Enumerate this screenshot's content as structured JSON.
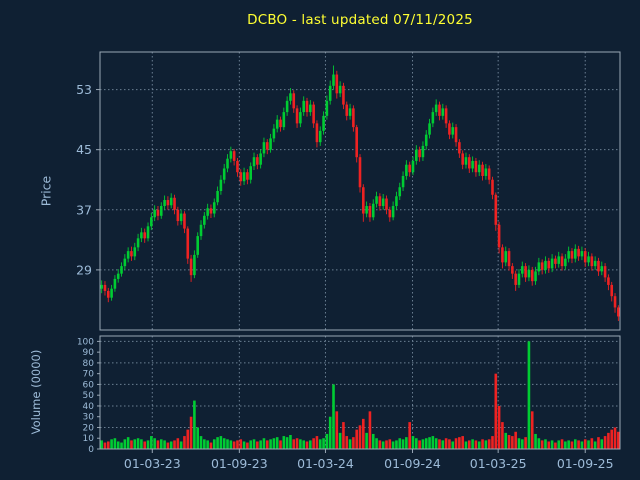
{
  "title": {
    "text": "DCBO - last updated 07/11/2025"
  },
  "colors": {
    "background": "#0f2033",
    "title": "#ffff33",
    "up": "#00cc33",
    "down": "#ee2222",
    "grid": "#6b7f93",
    "frame": "#9aa8b6",
    "tick": "#9dbbd8"
  },
  "price_axis": {
    "label": "Price",
    "ticks": [
      53,
      45,
      37,
      29
    ],
    "range": [
      21,
      58
    ]
  },
  "volume_axis": {
    "label": "Volume (0000)",
    "ticks": [
      100,
      90,
      80,
      70,
      60,
      50,
      40,
      30,
      20,
      10,
      0
    ],
    "grid_ticks": [
      20,
      40,
      60,
      80,
      100
    ],
    "range": [
      0,
      105
    ]
  },
  "x_axis": {
    "ticks": [
      {
        "label": "01-03-23",
        "date": "2023-03-01"
      },
      {
        "label": "01-09-23",
        "date": "2023-09-01"
      },
      {
        "label": "01-03-24",
        "date": "2024-03-01"
      },
      {
        "label": "01-09-24",
        "date": "2024-09-01"
      },
      {
        "label": "01-03-25",
        "date": "2025-03-01"
      },
      {
        "label": "01-09-25",
        "date": "2025-09-01"
      }
    ]
  },
  "chart_data": {
    "type": "candlestick+volume-bar",
    "symbol": "DCBO",
    "title": "DCBO - last updated 07/11/2025",
    "ylabel_price": "Price",
    "ylabel_volume": "Volume (0000)",
    "price_ylim": [
      21,
      58
    ],
    "volume_ylim": [
      0,
      105
    ],
    "grid": "dotted",
    "columns": [
      "date",
      "open",
      "high",
      "low",
      "close",
      "volume_0000"
    ],
    "rows": [
      [
        "2022-11-14",
        26.5,
        27.6,
        25.9,
        27.0,
        8
      ],
      [
        "2022-11-21",
        27.0,
        27.5,
        25.6,
        26.2,
        6
      ],
      [
        "2022-11-28",
        26.2,
        26.6,
        24.7,
        25.3,
        7
      ],
      [
        "2022-12-05",
        25.3,
        27.0,
        24.9,
        26.5,
        9
      ],
      [
        "2022-12-12",
        26.5,
        28.3,
        26.1,
        27.8,
        10
      ],
      [
        "2022-12-19",
        27.8,
        29.1,
        27.3,
        28.5,
        7
      ],
      [
        "2022-12-26",
        28.5,
        30.0,
        28.1,
        29.5,
        6
      ],
      [
        "2023-01-02",
        29.5,
        31.1,
        29.0,
        30.5,
        9
      ],
      [
        "2023-01-09",
        30.5,
        32.0,
        30.0,
        31.5,
        11
      ],
      [
        "2023-01-16",
        31.5,
        32.1,
        30.2,
        30.8,
        8
      ],
      [
        "2023-01-23",
        30.8,
        32.6,
        30.3,
        32.0,
        9
      ],
      [
        "2023-01-30",
        32.0,
        33.8,
        31.5,
        33.2,
        10
      ],
      [
        "2023-02-06",
        33.2,
        34.6,
        32.7,
        34.0,
        9
      ],
      [
        "2023-02-13",
        34.0,
        34.5,
        32.6,
        33.2,
        7
      ],
      [
        "2023-02-20",
        33.2,
        35.3,
        32.8,
        34.8,
        8
      ],
      [
        "2023-02-27",
        34.8,
        36.6,
        34.3,
        36.0,
        12
      ],
      [
        "2023-03-06",
        36.0,
        37.6,
        35.5,
        37.0,
        10
      ],
      [
        "2023-03-13",
        37.0,
        37.5,
        35.6,
        36.2,
        8
      ],
      [
        "2023-03-20",
        36.2,
        38.0,
        35.8,
        37.5,
        9
      ],
      [
        "2023-03-27",
        37.5,
        38.9,
        37.0,
        38.3,
        8
      ],
      [
        "2023-04-03",
        38.3,
        38.8,
        37.0,
        37.6,
        6
      ],
      [
        "2023-04-10",
        37.6,
        39.2,
        37.2,
        38.6,
        7
      ],
      [
        "2023-04-17",
        38.6,
        39.0,
        36.4,
        37.0,
        8
      ],
      [
        "2023-04-24",
        37.0,
        37.4,
        34.9,
        35.5,
        10
      ],
      [
        "2023-05-01",
        35.5,
        37.0,
        35.0,
        36.5,
        7
      ],
      [
        "2023-05-08",
        36.5,
        36.8,
        33.9,
        34.5,
        12
      ],
      [
        "2023-05-15",
        34.5,
        34.8,
        29.8,
        30.5,
        18
      ],
      [
        "2023-05-22",
        30.5,
        31.0,
        27.4,
        28.3,
        30
      ],
      [
        "2023-05-29",
        28.3,
        31.6,
        27.9,
        31.0,
        45
      ],
      [
        "2023-06-05",
        31.0,
        34.0,
        30.6,
        33.5,
        20
      ],
      [
        "2023-06-12",
        33.5,
        35.6,
        33.0,
        35.0,
        12
      ],
      [
        "2023-06-19",
        35.0,
        36.7,
        34.5,
        36.2,
        9
      ],
      [
        "2023-06-26",
        36.2,
        37.8,
        35.7,
        37.2,
        8
      ],
      [
        "2023-07-03",
        37.2,
        37.7,
        35.9,
        36.5,
        6
      ],
      [
        "2023-07-10",
        36.5,
        38.5,
        36.0,
        38.0,
        9
      ],
      [
        "2023-07-17",
        38.0,
        40.1,
        37.6,
        39.5,
        11
      ],
      [
        "2023-07-24",
        39.5,
        41.6,
        39.0,
        41.0,
        12
      ],
      [
        "2023-07-31",
        41.0,
        43.1,
        40.5,
        42.5,
        10
      ],
      [
        "2023-08-07",
        42.5,
        44.4,
        42.0,
        43.8,
        9
      ],
      [
        "2023-08-14",
        43.8,
        45.4,
        43.3,
        44.8,
        8
      ],
      [
        "2023-08-21",
        44.8,
        45.1,
        42.9,
        43.5,
        7
      ],
      [
        "2023-08-28",
        43.5,
        43.9,
        41.4,
        42.0,
        8
      ],
      [
        "2023-09-04",
        42.0,
        42.4,
        40.2,
        40.8,
        9
      ],
      [
        "2023-09-11",
        40.8,
        42.6,
        40.3,
        42.0,
        7
      ],
      [
        "2023-09-18",
        42.0,
        42.4,
        40.4,
        41.0,
        6
      ],
      [
        "2023-09-25",
        41.0,
        43.3,
        40.5,
        42.8,
        8
      ],
      [
        "2023-10-02",
        42.8,
        44.6,
        42.3,
        44.0,
        9
      ],
      [
        "2023-10-09",
        44.0,
        44.4,
        42.4,
        43.0,
        7
      ],
      [
        "2023-10-16",
        43.0,
        45.0,
        42.5,
        44.5,
        8
      ],
      [
        "2023-10-23",
        44.5,
        46.6,
        44.0,
        46.0,
        10
      ],
      [
        "2023-10-30",
        46.0,
        46.4,
        44.4,
        45.0,
        8
      ],
      [
        "2023-11-06",
        45.0,
        47.1,
        44.6,
        46.5,
        9
      ],
      [
        "2023-11-13",
        46.5,
        48.4,
        46.0,
        47.8,
        10
      ],
      [
        "2023-11-20",
        47.8,
        49.6,
        47.3,
        49.0,
        11
      ],
      [
        "2023-11-27",
        49.0,
        49.4,
        47.4,
        48.0,
        8
      ],
      [
        "2023-12-04",
        48.0,
        50.6,
        47.6,
        50.0,
        12
      ],
      [
        "2023-12-11",
        50.0,
        52.1,
        49.5,
        51.5,
        11
      ],
      [
        "2023-12-18",
        51.5,
        53.2,
        51.0,
        52.5,
        13
      ],
      [
        "2023-12-25",
        52.5,
        52.9,
        49.9,
        50.5,
        9
      ],
      [
        "2024-01-01",
        50.5,
        50.9,
        47.9,
        48.5,
        10
      ],
      [
        "2024-01-08",
        48.5,
        50.6,
        48.0,
        50.0,
        9
      ],
      [
        "2024-01-15",
        50.0,
        52.1,
        49.5,
        51.5,
        8
      ],
      [
        "2024-01-22",
        51.5,
        51.9,
        49.4,
        50.0,
        7
      ],
      [
        "2024-01-29",
        50.0,
        51.6,
        49.5,
        51.0,
        8
      ],
      [
        "2024-02-05",
        51.0,
        51.4,
        47.9,
        48.5,
        10
      ],
      [
        "2024-02-12",
        48.5,
        48.9,
        45.3,
        46.0,
        12
      ],
      [
        "2024-02-19",
        46.0,
        48.1,
        45.5,
        47.5,
        9
      ],
      [
        "2024-02-26",
        47.5,
        50.1,
        47.0,
        49.5,
        10
      ],
      [
        "2024-03-04",
        49.5,
        52.2,
        49.0,
        51.5,
        14
      ],
      [
        "2024-03-11",
        51.5,
        54.2,
        51.0,
        53.5,
        30
      ],
      [
        "2024-03-18",
        53.5,
        56.2,
        53.0,
        55.0,
        60
      ],
      [
        "2024-03-25",
        55.0,
        55.5,
        51.8,
        52.5,
        35
      ],
      [
        "2024-04-01",
        52.5,
        54.1,
        52.0,
        53.5,
        15
      ],
      [
        "2024-04-08",
        53.5,
        53.9,
        50.4,
        51.0,
        25
      ],
      [
        "2024-04-15",
        51.0,
        51.4,
        48.9,
        49.5,
        12
      ],
      [
        "2024-04-22",
        49.5,
        51.1,
        49.0,
        50.5,
        9
      ],
      [
        "2024-04-29",
        50.5,
        50.9,
        47.4,
        48.0,
        11
      ],
      [
        "2024-05-06",
        48.0,
        48.3,
        43.3,
        44.0,
        18
      ],
      [
        "2024-05-13",
        44.0,
        44.4,
        39.3,
        40.0,
        22
      ],
      [
        "2024-05-20",
        40.0,
        40.4,
        35.4,
        36.5,
        28
      ],
      [
        "2024-05-27",
        36.5,
        38.1,
        36.0,
        37.5,
        15
      ],
      [
        "2024-06-03",
        37.5,
        37.9,
        35.4,
        36.0,
        35
      ],
      [
        "2024-06-10",
        36.0,
        38.4,
        35.6,
        37.8,
        14
      ],
      [
        "2024-06-17",
        37.8,
        39.4,
        37.3,
        38.8,
        10
      ],
      [
        "2024-06-24",
        38.8,
        39.2,
        36.9,
        37.5,
        8
      ],
      [
        "2024-07-01",
        37.5,
        39.1,
        37.0,
        38.5,
        7
      ],
      [
        "2024-07-08",
        38.5,
        38.9,
        36.4,
        37.0,
        8
      ],
      [
        "2024-07-15",
        37.0,
        37.4,
        35.4,
        36.0,
        9
      ],
      [
        "2024-07-22",
        36.0,
        38.1,
        35.6,
        37.5,
        7
      ],
      [
        "2024-07-29",
        37.5,
        39.4,
        37.0,
        38.8,
        8
      ],
      [
        "2024-08-05",
        38.8,
        40.6,
        38.3,
        40.0,
        10
      ],
      [
        "2024-08-12",
        40.0,
        42.1,
        39.5,
        41.5,
        9
      ],
      [
        "2024-08-19",
        41.5,
        43.6,
        41.0,
        43.0,
        11
      ],
      [
        "2024-08-26",
        43.0,
        43.4,
        41.4,
        42.0,
        25
      ],
      [
        "2024-09-02",
        42.0,
        44.1,
        41.6,
        43.5,
        12
      ],
      [
        "2024-09-09",
        43.5,
        45.6,
        43.0,
        45.0,
        10
      ],
      [
        "2024-09-16",
        45.0,
        45.4,
        43.4,
        44.0,
        8
      ],
      [
        "2024-09-23",
        44.0,
        46.1,
        43.5,
        45.5,
        9
      ],
      [
        "2024-09-30",
        45.5,
        47.6,
        45.0,
        47.0,
        10
      ],
      [
        "2024-10-07",
        47.0,
        49.1,
        46.5,
        48.5,
        11
      ],
      [
        "2024-10-14",
        48.5,
        50.6,
        48.0,
        50.0,
        12
      ],
      [
        "2024-10-21",
        50.0,
        51.7,
        49.5,
        51.0,
        10
      ],
      [
        "2024-10-28",
        51.0,
        51.4,
        48.9,
        49.5,
        9
      ],
      [
        "2024-11-04",
        49.5,
        51.1,
        49.0,
        50.5,
        8
      ],
      [
        "2024-11-11",
        50.5,
        50.9,
        47.9,
        48.5,
        10
      ],
      [
        "2024-11-18",
        48.5,
        48.9,
        46.4,
        47.0,
        9
      ],
      [
        "2024-11-25",
        47.0,
        48.6,
        46.5,
        48.0,
        7
      ],
      [
        "2024-12-02",
        48.0,
        48.4,
        45.4,
        46.0,
        10
      ],
      [
        "2024-12-09",
        46.0,
        46.4,
        43.9,
        44.5,
        11
      ],
      [
        "2024-12-16",
        44.5,
        44.9,
        42.4,
        43.0,
        12
      ],
      [
        "2024-12-23",
        43.0,
        44.6,
        42.5,
        44.0,
        7
      ],
      [
        "2024-12-30",
        44.0,
        44.4,
        41.9,
        42.5,
        8
      ],
      [
        "2025-01-06",
        42.5,
        44.1,
        42.0,
        43.5,
        9
      ],
      [
        "2025-01-13",
        43.5,
        43.9,
        41.4,
        42.0,
        8
      ],
      [
        "2025-01-20",
        42.0,
        43.6,
        41.5,
        43.0,
        7
      ],
      [
        "2025-01-27",
        43.0,
        43.4,
        40.9,
        41.5,
        9
      ],
      [
        "2025-02-03",
        41.5,
        43.1,
        41.0,
        42.5,
        8
      ],
      [
        "2025-02-10",
        42.5,
        42.9,
        40.4,
        41.0,
        9
      ],
      [
        "2025-02-17",
        41.0,
        41.4,
        38.4,
        39.0,
        12
      ],
      [
        "2025-02-24",
        39.0,
        39.3,
        34.2,
        35.0,
        70
      ],
      [
        "2025-03-03",
        35.0,
        35.4,
        31.2,
        32.0,
        40
      ],
      [
        "2025-03-10",
        32.0,
        32.4,
        29.2,
        30.0,
        25
      ],
      [
        "2025-03-17",
        30.0,
        32.1,
        29.5,
        31.5,
        15
      ],
      [
        "2025-03-24",
        31.5,
        31.9,
        28.9,
        29.5,
        13
      ],
      [
        "2025-03-31",
        29.5,
        29.9,
        27.8,
        28.5,
        12
      ],
      [
        "2025-04-07",
        28.5,
        28.9,
        26.2,
        27.0,
        16
      ],
      [
        "2025-04-14",
        27.0,
        29.1,
        26.6,
        28.5,
        10
      ],
      [
        "2025-04-21",
        28.5,
        30.1,
        28.0,
        29.5,
        9
      ],
      [
        "2025-04-28",
        29.5,
        29.9,
        27.4,
        28.0,
        11
      ],
      [
        "2025-05-05",
        28.0,
        29.6,
        27.5,
        29.0,
        100
      ],
      [
        "2025-05-12",
        29.0,
        29.4,
        26.9,
        27.5,
        35
      ],
      [
        "2025-05-19",
        27.5,
        29.4,
        27.0,
        28.8,
        14
      ],
      [
        "2025-05-26",
        28.8,
        30.6,
        28.3,
        30.0,
        10
      ],
      [
        "2025-06-02",
        30.0,
        30.4,
        28.4,
        29.0,
        8
      ],
      [
        "2025-06-09",
        29.0,
        30.8,
        28.5,
        30.2,
        9
      ],
      [
        "2025-06-16",
        30.2,
        30.6,
        28.6,
        29.2,
        7
      ],
      [
        "2025-06-23",
        29.2,
        31.1,
        28.7,
        30.5,
        8
      ],
      [
        "2025-06-30",
        30.5,
        30.9,
        29.2,
        29.8,
        6
      ],
      [
        "2025-07-07",
        29.8,
        31.4,
        29.3,
        30.8,
        8
      ],
      [
        "2025-07-14",
        30.8,
        31.2,
        28.9,
        29.5,
        9
      ],
      [
        "2025-07-21",
        29.5,
        31.1,
        29.0,
        30.5,
        7
      ],
      [
        "2025-07-28",
        30.5,
        32.1,
        30.0,
        31.5,
        8
      ],
      [
        "2025-08-04",
        31.5,
        31.9,
        29.9,
        30.5,
        7
      ],
      [
        "2025-08-11",
        30.5,
        32.4,
        30.0,
        31.8,
        9
      ],
      [
        "2025-08-18",
        31.8,
        32.2,
        30.2,
        30.8,
        8
      ],
      [
        "2025-08-25",
        30.8,
        32.1,
        30.3,
        31.5,
        7
      ],
      [
        "2025-09-01",
        31.5,
        31.9,
        29.4,
        30.0,
        9
      ],
      [
        "2025-09-08",
        30.0,
        31.4,
        29.5,
        30.8,
        8
      ],
      [
        "2025-09-15",
        30.8,
        31.2,
        28.9,
        29.5,
        10
      ],
      [
        "2025-09-22",
        29.5,
        30.8,
        29.0,
        30.2,
        7
      ],
      [
        "2025-09-29",
        30.2,
        30.6,
        28.2,
        28.8,
        11
      ],
      [
        "2025-10-06",
        28.8,
        30.1,
        28.3,
        29.5,
        9
      ],
      [
        "2025-10-13",
        29.5,
        29.9,
        27.4,
        28.0,
        12
      ],
      [
        "2025-10-20",
        28.0,
        28.4,
        26.3,
        27.0,
        15
      ],
      [
        "2025-10-27",
        27.0,
        27.4,
        24.8,
        25.5,
        18
      ],
      [
        "2025-11-03",
        25.5,
        25.9,
        23.3,
        24.0,
        20
      ],
      [
        "2025-11-07",
        24.0,
        24.3,
        22.2,
        22.8,
        16
      ]
    ]
  }
}
